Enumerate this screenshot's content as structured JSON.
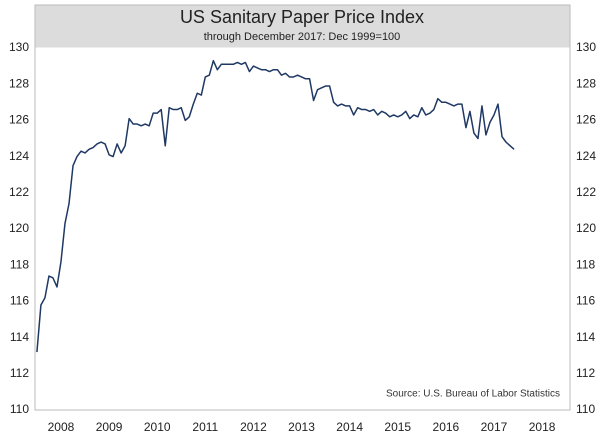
{
  "chart_data": {
    "type": "line",
    "title": "US Sanitary Paper Price Index",
    "subtitle": "through December 2017: Dec 1999=100",
    "annotation": "Source: U.S. Bureau of Labor Statistics",
    "x": [
      2008,
      2008.083,
      2008.167,
      2008.25,
      2008.333,
      2008.417,
      2008.5,
      2008.583,
      2008.667,
      2008.75,
      2008.833,
      2008.917,
      2009,
      2009.083,
      2009.167,
      2009.25,
      2009.333,
      2009.417,
      2009.5,
      2009.583,
      2009.667,
      2009.75,
      2009.833,
      2009.917,
      2010,
      2010.083,
      2010.167,
      2010.25,
      2010.333,
      2010.417,
      2010.5,
      2010.583,
      2010.667,
      2010.75,
      2010.833,
      2010.917,
      2011,
      2011.083,
      2011.167,
      2011.25,
      2011.333,
      2011.417,
      2011.5,
      2011.583,
      2011.667,
      2011.75,
      2011.833,
      2011.917,
      2012,
      2012.083,
      2012.167,
      2012.25,
      2012.333,
      2012.417,
      2012.5,
      2012.583,
      2012.667,
      2012.75,
      2012.833,
      2012.917,
      2013,
      2013.083,
      2013.167,
      2013.25,
      2013.333,
      2013.417,
      2013.5,
      2013.583,
      2013.667,
      2013.75,
      2013.833,
      2013.917,
      2014,
      2014.083,
      2014.167,
      2014.25,
      2014.333,
      2014.417,
      2014.5,
      2014.583,
      2014.667,
      2014.75,
      2014.833,
      2014.917,
      2015,
      2015.083,
      2015.167,
      2015.25,
      2015.333,
      2015.417,
      2015.5,
      2015.583,
      2015.667,
      2015.75,
      2015.833,
      2015.917,
      2016,
      2016.083,
      2016.167,
      2016.25,
      2016.333,
      2016.417,
      2016.5,
      2016.583,
      2016.667,
      2016.75,
      2016.833,
      2016.917,
      2017,
      2017.083,
      2017.167,
      2017.25,
      2017.333,
      2017.417,
      2017.5,
      2017.583,
      2017.667,
      2017.75,
      2017.833,
      2017.917
    ],
    "series": [
      {
        "color": "#1f3864",
        "values": [
          113.2,
          115.8,
          116.2,
          117.4,
          117.3,
          116.8,
          118.2,
          120.3,
          121.4,
          123.5,
          124.0,
          124.3,
          124.2,
          124.4,
          124.5,
          124.7,
          124.8,
          124.7,
          124.1,
          124.0,
          124.7,
          124.2,
          124.6,
          126.1,
          125.8,
          125.8,
          125.7,
          125.8,
          125.7,
          126.4,
          126.4,
          126.6,
          124.6,
          126.7,
          126.6,
          126.6,
          126.7,
          126.0,
          126.2,
          126.9,
          127.5,
          127.4,
          128.4,
          128.5,
          129.3,
          128.8,
          129.1,
          129.1,
          129.1,
          129.1,
          129.2,
          129.1,
          129.2,
          128.7,
          129.0,
          128.9,
          128.8,
          128.8,
          128.7,
          128.8,
          128.8,
          128.5,
          128.6,
          128.4,
          128.4,
          128.5,
          128.4,
          128.3,
          128.3,
          127.1,
          127.7,
          127.8,
          127.9,
          127.9,
          127.0,
          126.8,
          126.9,
          126.8,
          126.8,
          126.3,
          126.7,
          126.6,
          126.6,
          126.5,
          126.6,
          126.3,
          126.5,
          126.4,
          126.2,
          126.3,
          126.2,
          126.3,
          126.5,
          126.1,
          126.3,
          126.2,
          126.7,
          126.3,
          126.4,
          126.6,
          127.2,
          127.0,
          127.0,
          126.9,
          126.8,
          126.9,
          126.9,
          125.6,
          126.5,
          125.3,
          125.0,
          126.8,
          125.2,
          125.9,
          126.3,
          126.9,
          125.1,
          124.8,
          124.6,
          124.4
        ]
      }
    ],
    "xlim": [
      2007.96,
      2019.08
    ],
    "xticks": [
      {
        "value": 2008.5,
        "label": "2008"
      },
      {
        "value": 2009.5,
        "label": "2009"
      },
      {
        "value": 2010.5,
        "label": "2010"
      },
      {
        "value": 2011.5,
        "label": "2011"
      },
      {
        "value": 2012.5,
        "label": "2012"
      },
      {
        "value": 2013.5,
        "label": "2013"
      },
      {
        "value": 2014.5,
        "label": "2014"
      },
      {
        "value": 2015.5,
        "label": "2015"
      },
      {
        "value": 2016.5,
        "label": "2016"
      },
      {
        "value": 2017.5,
        "label": "2017"
      },
      {
        "value": 2018.5,
        "label": "2018"
      }
    ],
    "ylim": [
      110,
      130
    ],
    "yticks": [
      110,
      112,
      114,
      116,
      118,
      120,
      122,
      124,
      126,
      128,
      130
    ]
  }
}
